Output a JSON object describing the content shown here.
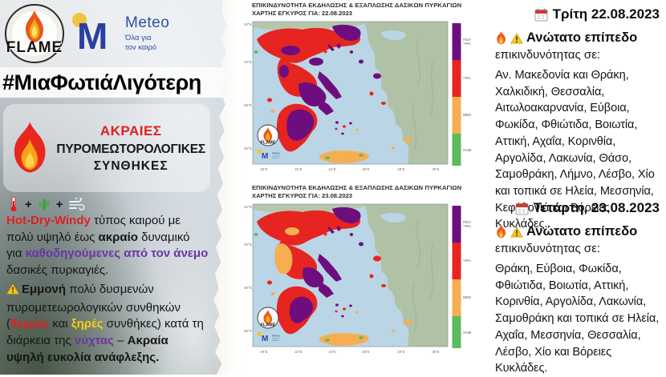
{
  "poster": {
    "hashtag": "#ΜιαΦωτιάΛιγότερη"
  },
  "logos": {
    "flame_label": "FLAME",
    "meteo_name": "Meteo",
    "meteo_tagline_line1": "Όλα για",
    "meteo_tagline_line2": "τον καιρό"
  },
  "left_panel": {
    "headline": {
      "line1": "ΑΚΡΑΙΕΣ",
      "line2": "ΠΥΡΟΜΕΩΤΟΡΟΛΟΓΙΚΕΣ",
      "line3": "ΣΥΝΘΗΚΕΣ"
    },
    "icon_row": {
      "plus1": "+",
      "plus2": "+"
    },
    "para1_segments": [
      {
        "t": "Hot-Dry-Windy",
        "s": "red"
      },
      {
        "t": " τύπος καιρού με πολύ υψηλό έως ",
        "s": "plain"
      },
      {
        "t": "ακραίο",
        "s": "b"
      },
      {
        "t": " δυναμικό για ",
        "s": "plain"
      },
      {
        "t": "καθοδηγούμενες από τον άνεμο",
        "s": "purple"
      },
      {
        "t": " δασικές πυρκαγιές.",
        "s": "plain"
      }
    ],
    "para2_segments": [
      {
        "t": "Εμμονή",
        "s": "b"
      },
      {
        "t": " πολύ δυσμενών πυρομετεωρολογικών συνθηκών (",
        "s": "plain"
      },
      {
        "t": "θερμές",
        "s": "red"
      },
      {
        "t": " και ",
        "s": "plain"
      },
      {
        "t": "ξηρές",
        "s": "yellow"
      },
      {
        "t": " συνθήκες) κατά τη διάρκεια της ",
        "s": "plain"
      },
      {
        "t": "νύχτας",
        "s": "purple"
      },
      {
        "t": " – ",
        "s": "plain"
      },
      {
        "t": "Ακραία υψηλή ευκολία ανάφλεξης.",
        "s": "b"
      }
    ]
  },
  "maps_panel": {
    "legend": {
      "labels": [
        "ΠΟΛΥ ΥΨΗΛΗ",
        "ΥΨΗΛΗ",
        "ΜΕΣΗ",
        "ΧΑΜΗΛΗ"
      ],
      "colors": [
        "#6e0e7e",
        "#e62520",
        "#f6ae51",
        "#5cbb5a"
      ]
    },
    "axes": {
      "lon": [
        "20°E",
        "22°E",
        "24°E",
        "26°E",
        "28°E",
        "30°E"
      ],
      "lat": [
        "42°N",
        "40°N",
        "38°N",
        "36°N"
      ]
    },
    "maps": [
      {
        "title": "ΕΠΙΚΙΝΔΥΝΟΤΗΤΑ ΕΚΔΗΛΩΣΗΣ & ΕΞΑΠΛΩΣΗΣ ΔΑΣΙΚΩΝ ΠΥΡΚΑΓΙΩΝ",
        "subtitle": "ΧΑΡΤΗΣ ΕΓΚΥΡΟΣ ΓΙΑ: 22.08.2023"
      },
      {
        "title": "ΕΠΙΚΙΝΔΥΝΟΤΗΤΑ ΕΚΔΗΛΩΣΗΣ & ΕΞΑΠΛΩΣΗΣ ΔΑΣΙΚΩΝ ΠΥΡΚΑΓΙΩΝ",
        "subtitle": "ΧΑΡΤΗΣ ΕΓΚΥΡΟΣ ΓΙΑ: 23.08.2023"
      }
    ],
    "map_logo_label": "FLAME",
    "map_logo_meteo": "Meteo"
  },
  "right_panel": {
    "day1": {
      "date": "Τρίτη 22.08.2023",
      "heading": "Ανώτατο επίπεδο",
      "subheading": "επικινδυνότητας σε:",
      "regions": "Αν. Μακεδονία και Θράκη, Χαλκιδική, Θεσσαλία, Αιτωλοακαρνανία, Εύβοια, Φωκίδα, Φθιώτιδα, Βοιωτία, Αττική, Αχαΐα, Κορινθία, Αργολίδα, Λακωνία, Θάσο, Σαμοθράκη, Λήμνο, Λέσβο, Χίο και τοπικά σε Ηλεία, Μεσσηνία, Κεφαλονιά και Βόρειες Κυκλάδες."
    },
    "day2": {
      "date": "Τετάρτη, 23.08.2023",
      "heading": "Ανώτατο επίπεδο",
      "subheading": "επικινδυνότητας σε:",
      "regions": "Θράκη, Εύβοια, Φωκίδα, Φθιώτιδα, Βοιωτία, Αττική, Κορινθία, Αργολίδα, Λακωνία, Σαμοθράκη και τοπικά σε Ηλεία, Αχαΐα, Μεσσηνία, Θεσσαλία, Λέσβο, Χίο και Βόρειες Κυκλάδες."
    }
  }
}
